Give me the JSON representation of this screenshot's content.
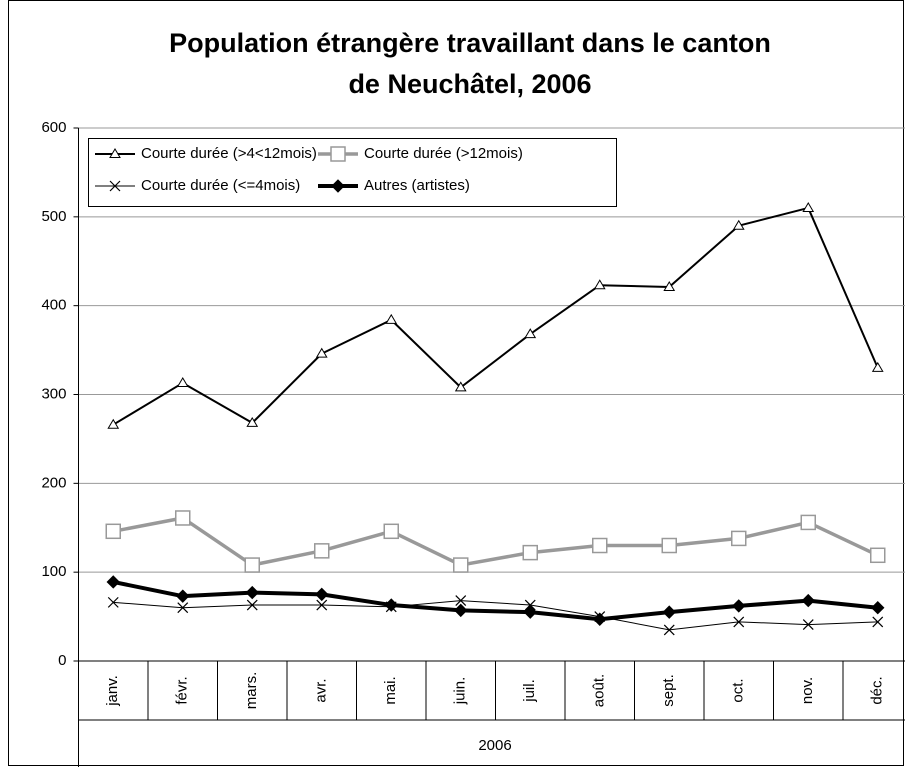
{
  "chart_data": {
    "type": "line",
    "title": [
      "Population étrangère travaillant dans le canton",
      "de Neuchâtel, 2006"
    ],
    "x_label": "2006",
    "categories": [
      "janv.",
      "févr.",
      "mars.",
      "avr.",
      "mai.",
      "juin.",
      "juil.",
      "août.",
      "sept.",
      "oct.",
      "nov.",
      "déc."
    ],
    "ylim": [
      0,
      600
    ],
    "yticks": [
      0,
      100,
      200,
      300,
      400,
      500,
      600
    ],
    "grid": true,
    "series": [
      {
        "name": "Courte durée (>4<12mois)",
        "color": "#000000",
        "marker": "triangle",
        "values": [
          266,
          313,
          268,
          346,
          384,
          308,
          368,
          423,
          421,
          490,
          510,
          330
        ]
      },
      {
        "name": "Courte durée (>12mois)",
        "color": "#999999",
        "marker": "square",
        "values": [
          146,
          161,
          108,
          124,
          146,
          108,
          122,
          130,
          130,
          138,
          156,
          119
        ]
      },
      {
        "name": "Courte durée (<=4mois)",
        "color": "#000000",
        "marker": "x",
        "values": [
          66,
          60,
          63,
          63,
          61,
          68,
          63,
          50,
          35,
          44,
          41,
          44
        ]
      },
      {
        "name": "Autres (artistes)",
        "color": "#000000",
        "marker": "diamond",
        "values": [
          89,
          73,
          77,
          75,
          63,
          57,
          55,
          47,
          55,
          62,
          68,
          60
        ]
      }
    ]
  }
}
